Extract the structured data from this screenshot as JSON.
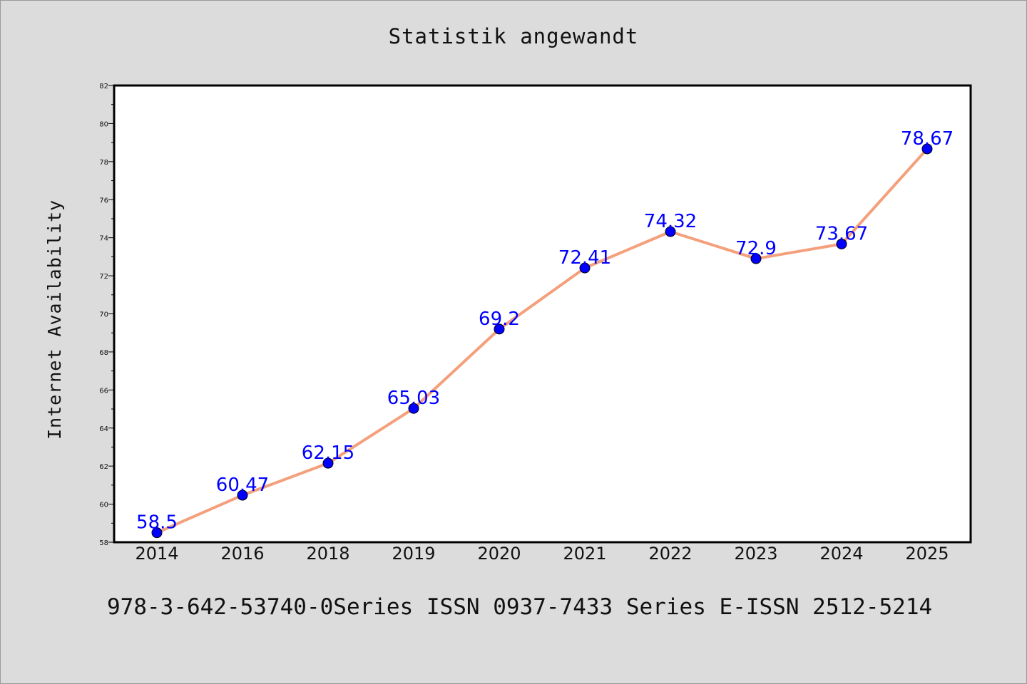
{
  "chart_data": {
    "type": "line",
    "title": "Statistik angewandt",
    "xlabel": "",
    "ylabel": "Internet Availability",
    "categories": [
      "2014",
      "2016",
      "2018",
      "2019",
      "2020",
      "2021",
      "2022",
      "2023",
      "2024",
      "2025"
    ],
    "series": [
      {
        "values": [
          58.5,
          60.47,
          62.15,
          65.03,
          69.2,
          72.41,
          74.32,
          72.9,
          73.67,
          78.67
        ],
        "data_labels": [
          "58.5",
          "60.47",
          "62.15",
          "65.03",
          "69.2",
          "72.41",
          "74.32",
          "72.9",
          "73.67",
          "78.67"
        ],
        "line_color": "#f4a07c",
        "marker_color": "#0000ff"
      }
    ],
    "ylim": [
      58,
      82
    ],
    "yticks": [
      "58",
      "60",
      "62",
      "64",
      "66",
      "68",
      "70",
      "72",
      "74",
      "76",
      "78",
      "80",
      "82"
    ],
    "grid": false,
    "legend": "none",
    "label_color": "#0000ff",
    "background": "#dcdcdc",
    "plot_background": "#ffffff"
  },
  "footer": {
    "text": "978-3-642-53740-0Series ISSN 0937-7433 Series E-ISSN 2512-5214"
  }
}
